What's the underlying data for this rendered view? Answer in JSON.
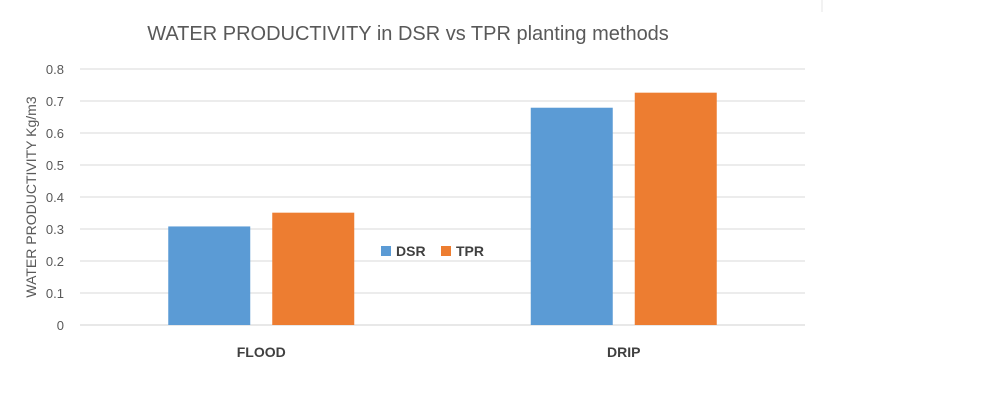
{
  "chart_data": {
    "type": "bar",
    "title": "WATER PRODUCTIVITY in DSR vs TPR planting methods",
    "xlabel": "",
    "ylabel": "WATER PRODUCTIVITY  Kg/m3",
    "categories": [
      "FLOOD",
      "DRIP"
    ],
    "series": [
      {
        "name": "DSR",
        "values": [
          0.308,
          0.679
        ],
        "color": "#5B9BD5"
      },
      {
        "name": "TPR",
        "values": [
          0.351,
          0.726
        ],
        "color": "#ED7D31"
      }
    ],
    "ylim": [
      0,
      0.8
    ],
    "yticks": [
      "0",
      "0.1",
      "0.2",
      "0.3",
      "0.4",
      "0.5",
      "0.6",
      "0.7",
      "0.8"
    ],
    "grid": true,
    "legend": "center"
  }
}
